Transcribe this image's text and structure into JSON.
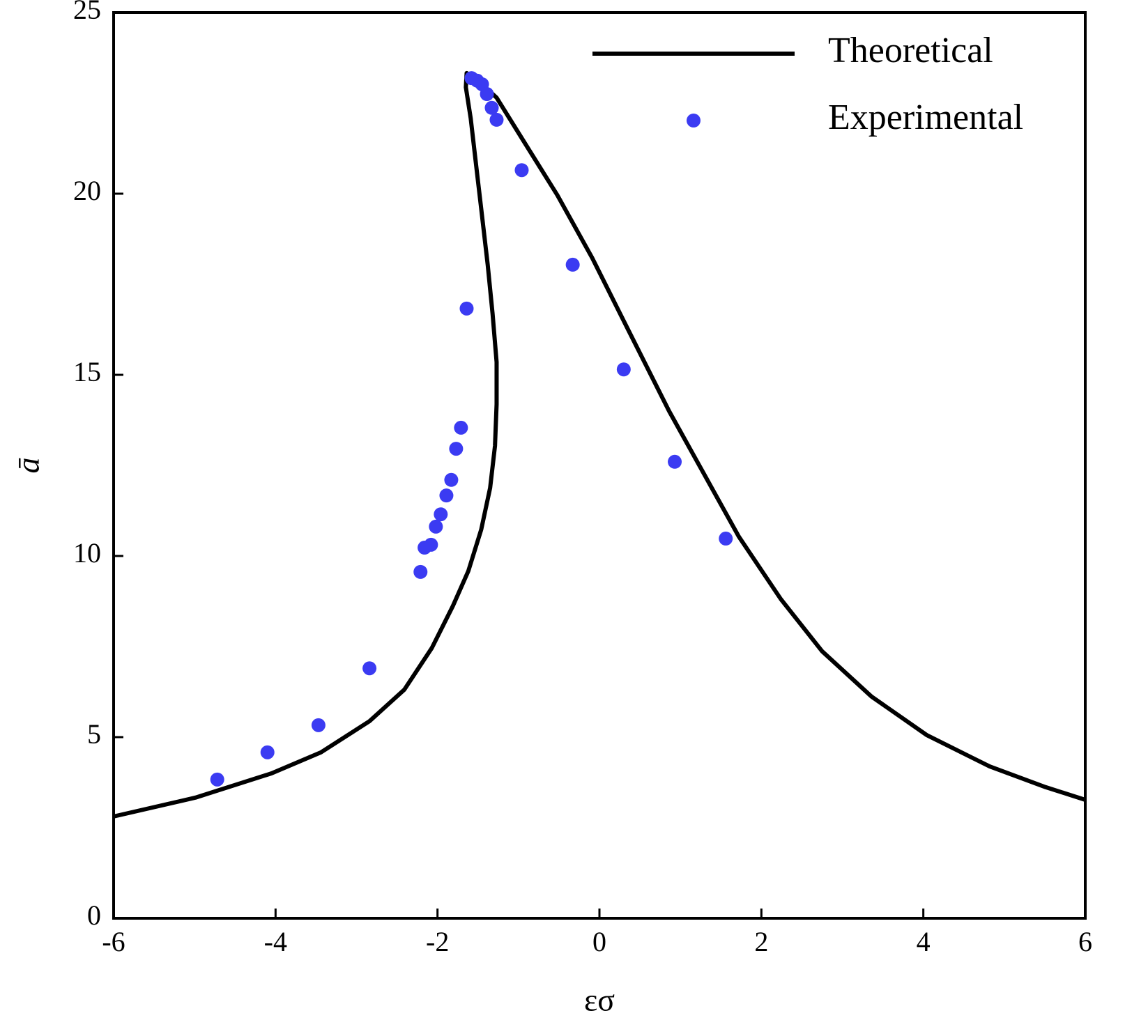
{
  "chart_data": {
    "type": "line",
    "xlabel": "εσ",
    "ylabel": "ā",
    "xlim": [
      -6,
      6
    ],
    "ylim": [
      0,
      25
    ],
    "xticks": [
      -6,
      -4,
      -2,
      0,
      2,
      4,
      6
    ],
    "yticks": [
      0,
      5,
      10,
      15,
      20,
      25
    ],
    "legend": "upper right",
    "series": [
      {
        "name": "Theoretical",
        "type": "line",
        "color": "#000000",
        "x": [
          -6,
          -4.99,
          -4.05,
          -3.44,
          -2.84,
          -2.41,
          -2.07,
          -1.81,
          -1.62,
          -1.46,
          -1.35,
          -1.29,
          -1.27,
          -1.27,
          -1.32,
          -1.38,
          -1.46,
          -1.53,
          -1.59,
          -1.65,
          -1.64,
          -1.46,
          -1.27,
          -0.95,
          -0.52,
          -0.09,
          0.34,
          0.86,
          1.29,
          1.72,
          2.24,
          2.75,
          3.36,
          4.04,
          4.82,
          5.51,
          6.0
        ],
        "values": [
          2.81,
          3.33,
          4.0,
          4.58,
          5.44,
          6.31,
          7.46,
          8.62,
          9.58,
          10.73,
          11.88,
          13.04,
          14.19,
          15.35,
          16.69,
          18.04,
          19.58,
          20.92,
          22.08,
          22.94,
          23.33,
          23.04,
          22.65,
          21.5,
          19.96,
          18.23,
          16.31,
          14.0,
          12.27,
          10.54,
          8.81,
          7.37,
          6.12,
          5.06,
          4.19,
          3.62,
          3.27
        ]
      },
      {
        "name": "Experimental",
        "type": "scatter",
        "color": "#3b3bf2",
        "x": [
          -4.72,
          -4.1,
          -3.47,
          -2.84,
          -2.21,
          -2.16,
          -2.08,
          -2.02,
          -1.96,
          -1.89,
          -1.83,
          -1.77,
          -1.71,
          -1.64,
          -1.58,
          -1.51,
          -1.45,
          -1.39,
          -1.33,
          -1.27,
          -0.96,
          -0.33,
          0.3,
          0.93,
          1.56
        ],
        "values": [
          3.83,
          4.58,
          5.33,
          6.9,
          9.56,
          10.23,
          10.31,
          10.81,
          11.15,
          11.67,
          12.1,
          12.96,
          13.54,
          16.83,
          23.19,
          23.12,
          23.02,
          22.75,
          22.37,
          22.04,
          20.65,
          18.04,
          15.15,
          12.6,
          10.48
        ]
      }
    ]
  }
}
